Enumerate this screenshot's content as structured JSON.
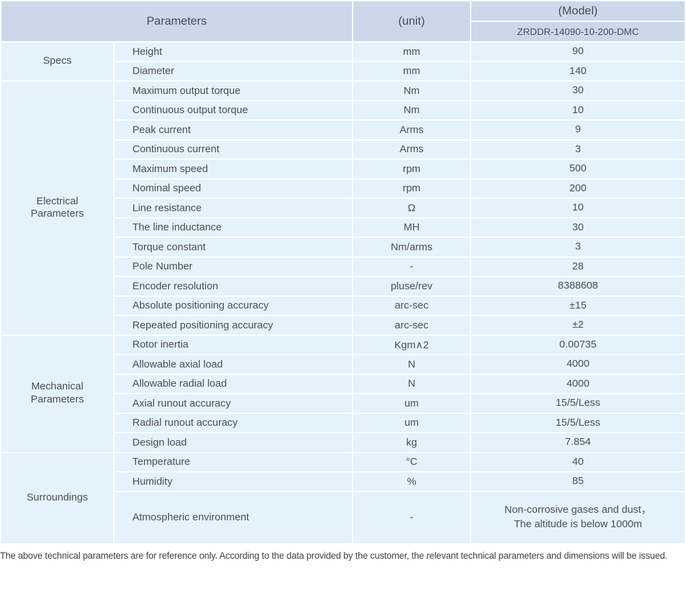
{
  "table": {
    "header": {
      "parameters_label": "Parameters",
      "unit_label": "(unit)",
      "model_label": "(Model)",
      "model_value": "ZRDDR-14090-10-200-DMC"
    },
    "sections": [
      {
        "name": "Specs",
        "rows": [
          {
            "param": "Height",
            "unit": "mm",
            "value": "90"
          },
          {
            "param": "Diameter",
            "unit": "mm",
            "value": "140"
          }
        ]
      },
      {
        "name": "Electrical\nParameters",
        "rows": [
          {
            "param": "Maximum output torque",
            "unit": "Nm",
            "value": "30"
          },
          {
            "param": "Continuous output torque",
            "unit": "Nm",
            "value": "10"
          },
          {
            "param": "Peak current",
            "unit": "Arms",
            "value": "9"
          },
          {
            "param": "Continuous current",
            "unit": "Arms",
            "value": "3"
          },
          {
            "param": "Maximum speed",
            "unit": "rpm",
            "value": "500"
          },
          {
            "param": "Nominal speed",
            "unit": "rpm",
            "value": "200"
          },
          {
            "param": "Line resistance",
            "unit": "Ω",
            "value": "10"
          },
          {
            "param": "The line inductance",
            "unit": "MH",
            "value": "30"
          },
          {
            "param": "Torque constant",
            "unit": "Nm/arms",
            "value": "3"
          },
          {
            "param": "Pole Number",
            "unit": "-",
            "value": "28"
          },
          {
            "param": "Encoder resolution",
            "unit": "pluse/rev",
            "value": "8388608"
          },
          {
            "param": "Absolute positioning accuracy",
            "unit": "arc-sec",
            "value": "±15"
          },
          {
            "param": "Repeated positioning accuracy",
            "unit": "arc-sec",
            "value": "±2"
          }
        ]
      },
      {
        "name": "Mechanical\nParameters",
        "rows": [
          {
            "param": "Rotor inertia",
            "unit": "Kgm∧2",
            "value": "0.00735"
          },
          {
            "param": "Allowable axial load",
            "unit": "N",
            "value": "4000"
          },
          {
            "param": "Allowable radial load",
            "unit": "N",
            "value": "4000"
          },
          {
            "param": "Axial runout accuracy",
            "unit": "um",
            "value": "15/5/Less"
          },
          {
            "param": "Radial runout accuracy",
            "unit": "um",
            "value": "15/5/Less"
          },
          {
            "param": "Design load",
            "unit": "kg",
            "value": "7.854"
          }
        ]
      },
      {
        "name": "Surroundings",
        "rows": [
          {
            "param": "Temperature",
            "unit": "°C",
            "value": "40"
          },
          {
            "param": "Humidity",
            "unit": "%",
            "value": "85"
          },
          {
            "param": "Atmospheric environment",
            "unit": "-",
            "value": "Non-corrosive gases and dust，\nThe altitude is below 1000m"
          }
        ]
      }
    ]
  },
  "footer_note": "The above technical parameters are for reference only. According to the data provided by the customer, the relevant technical parameters and dimensions will be issued.",
  "colors": {
    "header_bg": "#ccd7ec",
    "row_bg": "#e3f2fb",
    "grid_line": "#ffffff",
    "text": "#4a4d52"
  }
}
